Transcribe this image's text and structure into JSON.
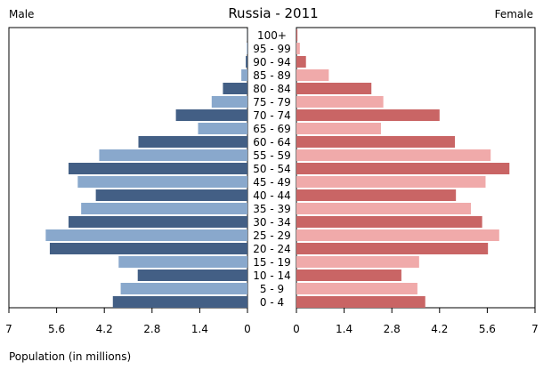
{
  "title": "Russia - 2011",
  "left_label": "Male",
  "right_label": "Female",
  "xlabel": "Population (in millions)",
  "colors": {
    "male_dark": "#435f85",
    "male_light": "#89a8cc",
    "female_dark": "#c96565",
    "female_light": "#f0aaaa",
    "frame": "#000000"
  },
  "chart_data": {
    "type": "bar",
    "orientation": "horizontal",
    "subtype": "population-pyramid",
    "title": "Russia - 2011",
    "xlabel": "Population (in millions)",
    "xlim": [
      0,
      7
    ],
    "ticks": [
      "7",
      "5.6",
      "4.2",
      "2.8",
      "1.4",
      "0"
    ],
    "ticks_right": [
      "0",
      "1.4",
      "2.8",
      "4.2",
      "5.6",
      "7"
    ],
    "categories": [
      "100+",
      "95 - 99",
      "90 - 94",
      "85 - 89",
      "80 - 84",
      "75 - 79",
      "70 - 74",
      "65 - 69",
      "60 - 64",
      "55 - 59",
      "50 - 54",
      "45 - 49",
      "40 - 44",
      "35 - 39",
      "30 - 34",
      "25 - 29",
      "20 - 24",
      "15 - 19",
      "10 - 14",
      "5 - 9",
      "0 - 4"
    ],
    "series": [
      {
        "name": "Male",
        "values": [
          0.005,
          0.02,
          0.05,
          0.18,
          0.72,
          1.05,
          2.1,
          1.45,
          3.2,
          4.35,
          5.25,
          4.98,
          4.45,
          4.88,
          5.25,
          5.92,
          5.8,
          3.78,
          3.22,
          3.72,
          3.95
        ]
      },
      {
        "name": "Female",
        "values": [
          0.03,
          0.1,
          0.28,
          0.95,
          2.2,
          2.55,
          4.2,
          2.48,
          4.65,
          5.7,
          6.25,
          5.55,
          4.68,
          5.12,
          5.45,
          5.95,
          5.62,
          3.6,
          3.08,
          3.55,
          3.78
        ]
      }
    ]
  }
}
